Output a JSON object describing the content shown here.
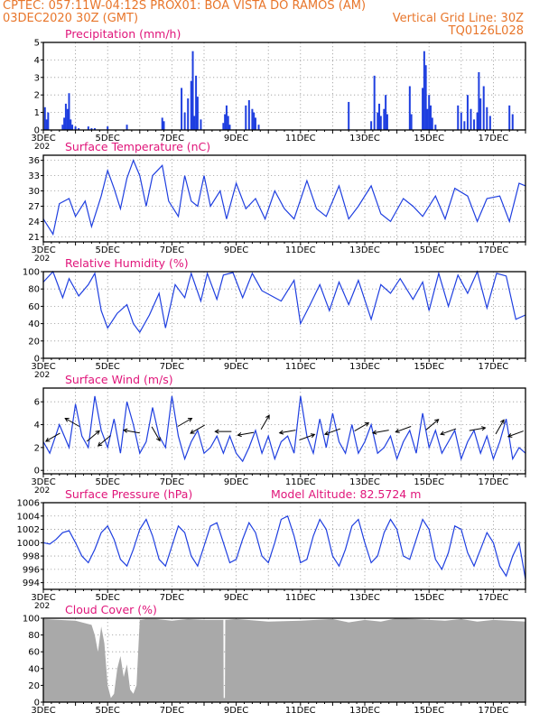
{
  "header": {
    "line1_left": "CPTEC:   057:11W-04:12S   PROX01: BOA VISTA DO RAMOS (AM)",
    "line2_left": "03DEC2020 30Z (GMT)",
    "line2_right": "Vertical Grid Line: 30Z",
    "line3_right": "TQ0126L028"
  },
  "colors": {
    "header": "#e8762b",
    "title": "#e0157a",
    "series": "#1f3fe0",
    "cloud": "#a9a9a9"
  },
  "x_axis": {
    "start_day": 3,
    "end_day": 18,
    "tick_labels": [
      "3DEC",
      "5DEC",
      "7DEC",
      "9DEC",
      "11DEC",
      "13DEC",
      "15DEC",
      "17DEC"
    ],
    "tick_days": [
      3,
      5,
      7,
      9,
      11,
      13,
      15,
      17
    ],
    "year_stub": "202"
  },
  "chart_data": [
    {
      "id": "precip",
      "type": "bar",
      "title": "Precipitation (mm/h)",
      "ylim": [
        0,
        5
      ],
      "yticks": [
        0,
        1,
        2,
        3,
        4,
        5
      ],
      "x": [
        3.05,
        3.1,
        3.15,
        3.6,
        3.65,
        3.7,
        3.75,
        3.8,
        3.85,
        3.9,
        4.0,
        4.1,
        4.4,
        4.5,
        4.6,
        5.0,
        5.6,
        6.7,
        6.75,
        7.3,
        7.4,
        7.5,
        7.6,
        7.65,
        7.7,
        7.75,
        7.8,
        7.9,
        8.6,
        8.65,
        8.7,
        8.75,
        8.8,
        9.3,
        9.4,
        9.5,
        9.55,
        9.6,
        9.7,
        12.5,
        13.2,
        13.3,
        13.4,
        13.45,
        13.5,
        13.6,
        13.65,
        13.7,
        14.4,
        14.45,
        14.8,
        14.85,
        14.9,
        14.95,
        15.0,
        15.05,
        15.1,
        15.2,
        15.9,
        16.0,
        16.1,
        16.2,
        16.3,
        16.4,
        16.5,
        16.55,
        16.6,
        16.7,
        16.8,
        16.9,
        17.5,
        17.6
      ],
      "values": [
        1.3,
        0.6,
        1.0,
        0.3,
        0.7,
        1.5,
        1.2,
        2.1,
        0.6,
        0.3,
        0.2,
        0.1,
        0.2,
        0.1,
        0.1,
        0.2,
        0.3,
        0.7,
        0.5,
        2.4,
        1.0,
        1.8,
        2.8,
        4.5,
        0.8,
        3.1,
        1.9,
        0.6,
        0.4,
        0.9,
        1.4,
        0.8,
        0.3,
        1.4,
        1.7,
        1.2,
        1.0,
        0.7,
        0.3,
        1.6,
        0.5,
        3.1,
        1.0,
        1.5,
        0.8,
        1.2,
        2.0,
        0.9,
        2.5,
        0.9,
        2.4,
        4.5,
        3.7,
        1.2,
        2.0,
        1.4,
        0.7,
        0.3,
        1.4,
        1.0,
        0.5,
        2.0,
        1.2,
        0.6,
        1.0,
        3.3,
        1.8,
        2.5,
        1.3,
        0.8,
        1.4,
        0.9
      ]
    },
    {
      "id": "temp",
      "type": "line",
      "title": "Surface Temperature (nC)",
      "ylim": [
        20,
        37
      ],
      "yticks": [
        21,
        24,
        27,
        30,
        33,
        36
      ],
      "x": [
        3.0,
        3.3,
        3.5,
        3.8,
        4.0,
        4.3,
        4.5,
        4.8,
        5.0,
        5.2,
        5.4,
        5.6,
        5.8,
        6.0,
        6.2,
        6.4,
        6.7,
        6.9,
        7.2,
        7.4,
        7.6,
        7.8,
        8.0,
        8.2,
        8.5,
        8.7,
        9.0,
        9.3,
        9.6,
        9.9,
        10.2,
        10.5,
        10.8,
        11.2,
        11.5,
        11.8,
        12.2,
        12.5,
        12.8,
        13.2,
        13.5,
        13.8,
        14.2,
        14.5,
        14.8,
        15.2,
        15.5,
        15.8,
        16.2,
        16.5,
        16.8,
        17.2,
        17.5,
        17.8,
        18.0
      ],
      "values": [
        24.5,
        21.5,
        27.5,
        28.5,
        25.0,
        28.0,
        23.0,
        29.0,
        34.0,
        30.5,
        26.5,
        32.5,
        36.0,
        33.0,
        27.0,
        33.0,
        35.0,
        28.0,
        25.0,
        33.0,
        28.0,
        27.0,
        33.0,
        27.0,
        30.0,
        24.5,
        31.5,
        26.5,
        28.5,
        24.5,
        30.0,
        26.5,
        24.5,
        32.0,
        26.5,
        25.0,
        31.0,
        24.5,
        27.0,
        31.0,
        25.5,
        24.0,
        28.5,
        27.0,
        25.0,
        29.0,
        24.5,
        30.5,
        29.0,
        24.0,
        28.5,
        29.0,
        24.0,
        31.5,
        31.0
      ]
    },
    {
      "id": "rh",
      "type": "line",
      "title": "Relative Humidity (%)",
      "ylim": [
        0,
        100
      ],
      "yticks": [
        0,
        20,
        40,
        60,
        80,
        100
      ],
      "x": [
        3.0,
        3.3,
        3.6,
        3.8,
        4.1,
        4.4,
        4.6,
        4.8,
        5.0,
        5.3,
        5.6,
        5.8,
        6.0,
        6.3,
        6.6,
        6.8,
        7.1,
        7.4,
        7.6,
        7.9,
        8.1,
        8.4,
        8.6,
        8.9,
        9.2,
        9.5,
        9.8,
        10.1,
        10.4,
        10.8,
        11.0,
        11.3,
        11.6,
        11.9,
        12.2,
        12.5,
        12.8,
        13.2,
        13.5,
        13.8,
        14.1,
        14.5,
        14.8,
        15.0,
        15.3,
        15.6,
        15.9,
        16.2,
        16.5,
        16.8,
        17.1,
        17.4,
        17.7,
        18.0
      ],
      "values": [
        88,
        100,
        70,
        92,
        72,
        85,
        98,
        55,
        35,
        52,
        62,
        40,
        30,
        50,
        75,
        35,
        85,
        70,
        98,
        66,
        98,
        68,
        96,
        99,
        70,
        98,
        78,
        72,
        66,
        90,
        40,
        62,
        85,
        55,
        88,
        62,
        90,
        45,
        85,
        75,
        92,
        68,
        88,
        55,
        98,
        60,
        96,
        75,
        100,
        58,
        98,
        95,
        45,
        50
      ]
    },
    {
      "id": "wind",
      "type": "line",
      "title": "Surface Wind (m/s)",
      "ylim": [
        -0.3,
        7.2
      ],
      "yticks": [
        0,
        2,
        4,
        6
      ],
      "x": [
        3.0,
        3.2,
        3.5,
        3.8,
        4.0,
        4.2,
        4.4,
        4.6,
        4.8,
        5.0,
        5.2,
        5.4,
        5.6,
        5.8,
        6.0,
        6.2,
        6.4,
        6.6,
        6.8,
        7.0,
        7.2,
        7.4,
        7.6,
        7.8,
        8.0,
        8.2,
        8.4,
        8.6,
        8.8,
        9.0,
        9.2,
        9.4,
        9.6,
        9.8,
        10.0,
        10.2,
        10.4,
        10.6,
        10.8,
        11.0,
        11.2,
        11.4,
        11.6,
        11.8,
        12.0,
        12.2,
        12.4,
        12.6,
        12.8,
        13.0,
        13.2,
        13.4,
        13.6,
        13.8,
        14.0,
        14.2,
        14.4,
        14.6,
        14.8,
        15.0,
        15.2,
        15.4,
        15.6,
        15.8,
        16.0,
        16.2,
        16.4,
        16.6,
        16.8,
        17.0,
        17.2,
        17.4,
        17.6,
        17.8,
        18.0
      ],
      "values": [
        2.5,
        1.5,
        4.0,
        2.0,
        5.8,
        3.0,
        2.0,
        6.5,
        3.5,
        2.0,
        4.5,
        1.5,
        6.0,
        4.0,
        1.5,
        2.5,
        5.5,
        3.0,
        2.0,
        6.5,
        3.0,
        1.0,
        2.5,
        3.5,
        1.5,
        2.0,
        3.0,
        1.5,
        3.0,
        1.5,
        0.8,
        2.0,
        3.5,
        1.5,
        3.0,
        1.0,
        2.5,
        3.0,
        1.5,
        6.5,
        3.0,
        1.5,
        4.5,
        2.0,
        5.0,
        2.5,
        1.5,
        4.0,
        1.5,
        2.5,
        4.0,
        1.5,
        2.0,
        3.0,
        1.0,
        2.5,
        3.5,
        1.5,
        5.0,
        2.0,
        3.5,
        1.5,
        2.5,
        3.5,
        1.0,
        2.5,
        3.5,
        1.5,
        3.0,
        1.0,
        2.5,
        4.5,
        1.0,
        2.0,
        1.5
      ],
      "arrows": [
        {
          "x": 3.3,
          "y": 2.9,
          "dir": 210
        },
        {
          "x": 3.9,
          "y": 4.2,
          "dir": 150
        },
        {
          "x": 4.55,
          "y": 3.0,
          "dir": 40
        },
        {
          "x": 4.9,
          "y": 2.6,
          "dir": 220
        },
        {
          "x": 5.75,
          "y": 3.4,
          "dir": 170
        },
        {
          "x": 6.5,
          "y": 3.2,
          "dir": 300
        },
        {
          "x": 7.4,
          "y": 4.2,
          "dir": 30
        },
        {
          "x": 7.8,
          "y": 3.6,
          "dir": 210
        },
        {
          "x": 8.6,
          "y": 3.4,
          "dir": 180
        },
        {
          "x": 9.3,
          "y": 3.2,
          "dir": 190
        },
        {
          "x": 9.9,
          "y": 4.2,
          "dir": 60
        },
        {
          "x": 10.6,
          "y": 3.4,
          "dir": 190
        },
        {
          "x": 11.2,
          "y": 2.9,
          "dir": 20
        },
        {
          "x": 12.0,
          "y": 3.4,
          "dir": 200
        },
        {
          "x": 12.9,
          "y": 3.8,
          "dir": 30
        },
        {
          "x": 13.5,
          "y": 3.4,
          "dir": 190
        },
        {
          "x": 14.2,
          "y": 3.6,
          "dir": 200
        },
        {
          "x": 15.1,
          "y": 4.0,
          "dir": 40
        },
        {
          "x": 15.6,
          "y": 3.4,
          "dir": 200
        },
        {
          "x": 16.5,
          "y": 3.6,
          "dir": 10
        },
        {
          "x": 17.2,
          "y": 3.8,
          "dir": 60
        },
        {
          "x": 17.7,
          "y": 3.2,
          "dir": 200
        }
      ]
    },
    {
      "id": "pres",
      "type": "line",
      "title": "Surface Pressure (hPa)",
      "annotation": "Model Altitude: 82.5724 m",
      "ylim": [
        993,
        1006
      ],
      "yticks": [
        994,
        996,
        998,
        1000,
        1002,
        1004,
        1006
      ],
      "x": [
        3.0,
        3.2,
        3.4,
        3.6,
        3.8,
        4.0,
        4.2,
        4.4,
        4.6,
        4.8,
        5.0,
        5.2,
        5.4,
        5.6,
        5.8,
        6.0,
        6.2,
        6.4,
        6.6,
        6.8,
        7.0,
        7.2,
        7.4,
        7.6,
        7.8,
        8.0,
        8.2,
        8.4,
        8.6,
        8.8,
        9.0,
        9.2,
        9.4,
        9.6,
        9.8,
        10.0,
        10.2,
        10.4,
        10.6,
        10.8,
        11.0,
        11.2,
        11.4,
        11.6,
        11.8,
        12.0,
        12.2,
        12.4,
        12.6,
        12.8,
        13.0,
        13.2,
        13.4,
        13.6,
        13.8,
        14.0,
        14.2,
        14.4,
        14.6,
        14.8,
        15.0,
        15.2,
        15.4,
        15.6,
        15.8,
        16.0,
        16.2,
        16.4,
        16.6,
        16.8,
        17.0,
        17.2,
        17.4,
        17.6,
        17.8,
        18.0
      ],
      "values": [
        1000.0,
        999.8,
        1000.5,
        1001.5,
        1001.8,
        1000.0,
        998.0,
        997.0,
        999.0,
        1001.5,
        1002.5,
        1000.5,
        997.5,
        996.5,
        999.0,
        1002.0,
        1003.5,
        1001.0,
        997.5,
        996.5,
        999.5,
        1002.5,
        1001.5,
        998.0,
        996.5,
        999.5,
        1002.5,
        1003.0,
        1000.0,
        997.0,
        997.5,
        1000.5,
        1003.0,
        1001.5,
        998.0,
        997.0,
        1000.0,
        1003.5,
        1004.0,
        1001.0,
        997.0,
        997.5,
        1001.0,
        1003.5,
        1002.0,
        998.0,
        996.5,
        999.0,
        1002.5,
        1003.5,
        1000.0,
        997.0,
        998.0,
        1001.5,
        1003.5,
        1002.0,
        998.0,
        997.5,
        1000.5,
        1003.5,
        1002.0,
        997.5,
        996.0,
        998.5,
        1002.5,
        1002.0,
        998.5,
        996.5,
        999.0,
        1001.5,
        1000.0,
        996.5,
        995.0,
        998.0,
        1000.0,
        994.5
      ]
    },
    {
      "id": "cloud",
      "type": "area",
      "title": "Cloud Cover (%)",
      "ylim": [
        0,
        100
      ],
      "yticks": [
        0,
        20,
        40,
        60,
        80,
        100
      ],
      "x": [
        3.0,
        3.5,
        4.0,
        4.5,
        4.6,
        4.7,
        4.8,
        4.9,
        5.0,
        5.1,
        5.2,
        5.3,
        5.4,
        5.5,
        5.6,
        5.7,
        5.8,
        5.9,
        6.0,
        6.2,
        6.5,
        7.0,
        7.5,
        8.0,
        8.6,
        8.61,
        8.65,
        8.66,
        9.0,
        10.0,
        11.0,
        12.0,
        12.5,
        13.0,
        13.5,
        14.0,
        14.5,
        15.0,
        15.5,
        16.0,
        16.5,
        17.0,
        17.5,
        18.0
      ],
      "values": [
        99,
        98,
        97,
        92,
        80,
        60,
        90,
        70,
        20,
        5,
        10,
        40,
        55,
        30,
        45,
        15,
        10,
        20,
        98,
        99,
        99,
        97,
        99,
        98,
        98,
        5,
        5,
        98,
        99,
        96,
        97,
        99,
        95,
        98,
        96,
        100,
        99,
        98,
        97,
        99,
        96,
        98,
        97,
        96
      ]
    }
  ]
}
